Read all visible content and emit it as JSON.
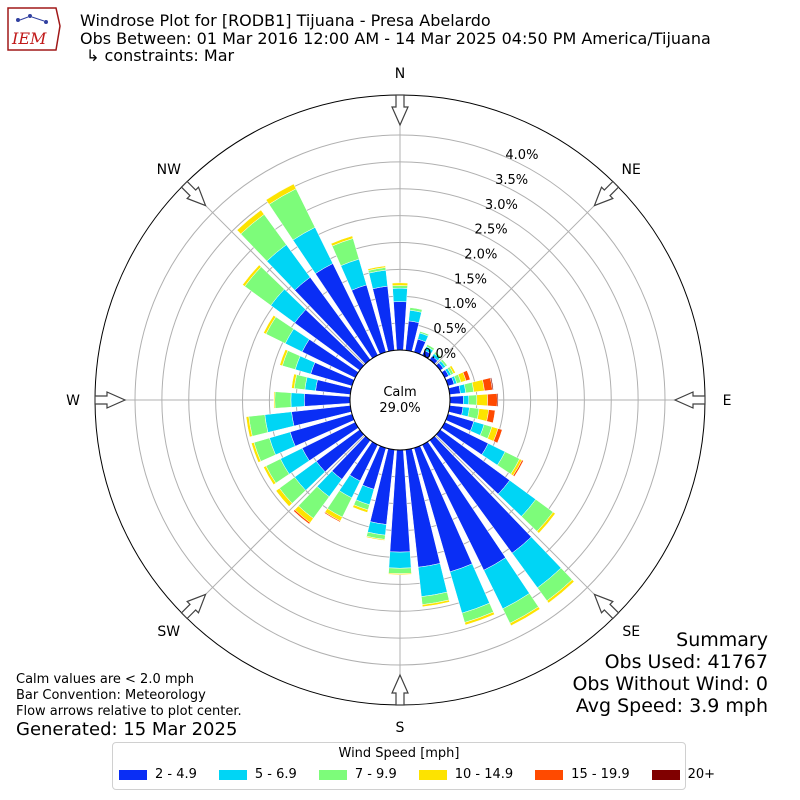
{
  "header": {
    "logo_text": "IEM",
    "title": "Windrose Plot for [RODB1] Tijuana - Presa Abelardo",
    "obs_between": "Obs Between: 01 Mar 2016 12:00 AM - 14 Mar 2025 04:50 PM America/Tijuana",
    "constraints": "↳ constraints: Mar"
  },
  "notes": {
    "calm_note": "Calm values are < 2.0 mph",
    "bar_convention": "Bar Convention: Meteorology",
    "flow_arrows": "Flow arrows relative to plot center.",
    "generated": "Generated: 15 Mar 2025"
  },
  "summary": {
    "title": "Summary",
    "obs_used": "Obs Used: 41767",
    "obs_without_wind": "Obs Without Wind: 0",
    "avg_speed": "Avg Speed: 3.9 mph"
  },
  "legend": {
    "title": "Wind Speed [mph]",
    "items": [
      {
        "label": "2 - 4.9",
        "color": "#0a2ef5"
      },
      {
        "label": "5 - 6.9",
        "color": "#00d5f5"
      },
      {
        "label": "7 - 9.9",
        "color": "#7dfc7a"
      },
      {
        "label": "10 - 14.9",
        "color": "#fde300"
      },
      {
        "label": "15 - 19.9",
        "color": "#ff4a00"
      },
      {
        "label": "20+",
        "color": "#800000"
      }
    ]
  },
  "chart_data": {
    "type": "windrose",
    "calm_label": "Calm",
    "calm_value": "29.0%",
    "calm_percent": 29.0,
    "directions": [
      "N",
      "NE",
      "E",
      "SE",
      "S",
      "SW",
      "W",
      "NW"
    ],
    "radial_ticks": [
      "0.0%",
      "0.5%",
      "1.0%",
      "1.5%",
      "2.0%",
      "2.5%",
      "3.0%",
      "3.5%",
      "4.0%"
    ],
    "rlim": [
      0,
      4.0
    ],
    "grid": true,
    "bins": [
      "2 - 4.9",
      "5 - 6.9",
      "7 - 9.9",
      "10 - 14.9",
      "15 - 19.9",
      "20+"
    ],
    "sector_width_deg": 10,
    "sectors": [
      {
        "dir": 0,
        "values": [
          0.9,
          0.25,
          0.05,
          0.05,
          0,
          0
        ]
      },
      {
        "dir": 10,
        "values": [
          0.55,
          0.2,
          0.05,
          0.0,
          0,
          0
        ]
      },
      {
        "dir": 20,
        "values": [
          0.25,
          0.12,
          0.03,
          0.0,
          0,
          0
        ]
      },
      {
        "dir": 30,
        "values": [
          0.1,
          0.08,
          0.04,
          0.0,
          0,
          0
        ]
      },
      {
        "dir": 40,
        "values": [
          0.08,
          0.06,
          0.04,
          0.0,
          0,
          0
        ]
      },
      {
        "dir": 50,
        "values": [
          0.07,
          0.05,
          0.04,
          0.0,
          0,
          0
        ]
      },
      {
        "dir": 60,
        "values": [
          0.08,
          0.05,
          0.05,
          0.04,
          0,
          0
        ]
      },
      {
        "dir": 70,
        "values": [
          0.12,
          0.05,
          0.08,
          0.1,
          0.08,
          0
        ]
      },
      {
        "dir": 80,
        "values": [
          0.2,
          0.1,
          0.15,
          0.2,
          0.15,
          0.02
        ]
      },
      {
        "dir": 90,
        "values": [
          0.25,
          0.1,
          0.15,
          0.2,
          0.18,
          0.02
        ]
      },
      {
        "dir": 100,
        "values": [
          0.25,
          0.12,
          0.18,
          0.18,
          0.12,
          0
        ]
      },
      {
        "dir": 110,
        "values": [
          0.5,
          0.2,
          0.15,
          0.12,
          0.08,
          0
        ]
      },
      {
        "dir": 120,
        "values": [
          0.9,
          0.35,
          0.3,
          0.05,
          0.03,
          0
        ]
      },
      {
        "dir": 130,
        "values": [
          1.6,
          0.6,
          0.4,
          0.05,
          0,
          0
        ]
      },
      {
        "dir": 140,
        "values": [
          2.6,
          0.8,
          0.3,
          0.05,
          0,
          0
        ]
      },
      {
        "dir": 150,
        "values": [
          2.6,
          0.8,
          0.3,
          0.05,
          0,
          0
        ]
      },
      {
        "dir": 160,
        "values": [
          2.4,
          0.8,
          0.18,
          0.05,
          0,
          0
        ]
      },
      {
        "dir": 170,
        "values": [
          2.2,
          0.55,
          0.15,
          0.04,
          0,
          0
        ]
      },
      {
        "dir": 180,
        "values": [
          1.9,
          0.3,
          0.1,
          0.02,
          0,
          0
        ]
      },
      {
        "dir": 190,
        "values": [
          1.4,
          0.2,
          0.08,
          0.02,
          0,
          0
        ]
      },
      {
        "dir": 200,
        "values": [
          0.8,
          0.3,
          0.1,
          0.05,
          0,
          0
        ]
      },
      {
        "dir": 210,
        "values": [
          0.75,
          0.35,
          0.4,
          0.08,
          0.02,
          0
        ]
      },
      {
        "dir": 220,
        "values": [
          0.9,
          0.4,
          0.5,
          0.1,
          0.03,
          0
        ]
      },
      {
        "dir": 230,
        "values": [
          1.0,
          0.5,
          0.35,
          0.08,
          0,
          0
        ]
      },
      {
        "dir": 240,
        "values": [
          1.1,
          0.45,
          0.3,
          0.05,
          0,
          0
        ]
      },
      {
        "dir": 250,
        "values": [
          1.2,
          0.4,
          0.3,
          0.05,
          0,
          0
        ]
      },
      {
        "dir": 260,
        "values": [
          1.1,
          0.5,
          0.3,
          0.05,
          0,
          0
        ]
      },
      {
        "dir": 270,
        "values": [
          0.85,
          0.25,
          0.3,
          0.02,
          0,
          0
        ]
      },
      {
        "dir": 280,
        "values": [
          0.65,
          0.2,
          0.2,
          0.05,
          0,
          0
        ]
      },
      {
        "dir": 290,
        "values": [
          0.8,
          0.3,
          0.25,
          0.05,
          0,
          0
        ]
      },
      {
        "dir": 300,
        "values": [
          1.1,
          0.35,
          0.4,
          0.05,
          0,
          0
        ]
      },
      {
        "dir": 310,
        "values": [
          1.5,
          0.55,
          0.6,
          0.05,
          0,
          0
        ]
      },
      {
        "dir": 320,
        "values": [
          1.9,
          0.75,
          0.7,
          0.1,
          0,
          0
        ]
      },
      {
        "dir": 330,
        "values": [
          1.9,
          0.75,
          0.8,
          0.1,
          0,
          0
        ]
      },
      {
        "dir": 340,
        "values": [
          1.3,
          0.5,
          0.4,
          0.05,
          0,
          0
        ]
      },
      {
        "dir": 350,
        "values": [
          1.2,
          0.3,
          0.05,
          0.03,
          0,
          0
        ]
      }
    ]
  }
}
